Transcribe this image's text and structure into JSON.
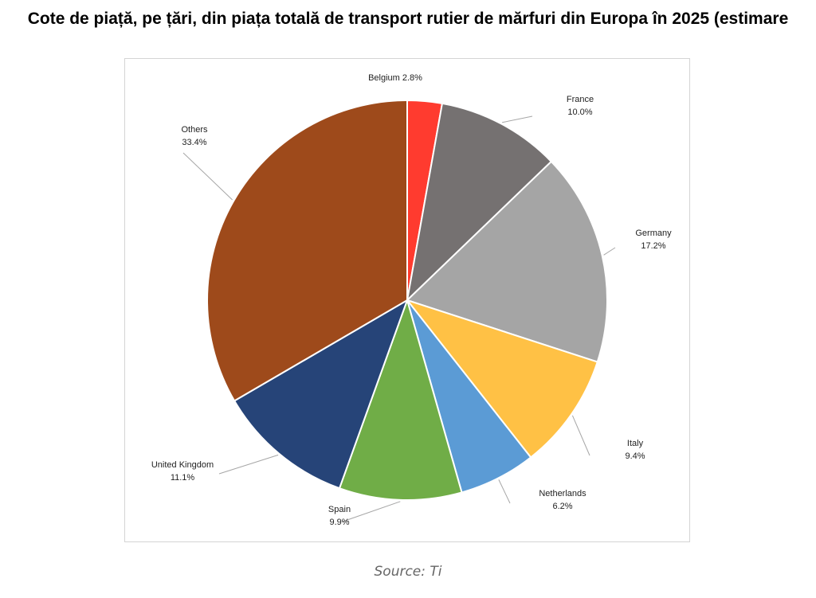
{
  "chart_data": {
    "type": "pie",
    "title": "Cote de piață, pe țări, din piața totală de transport rutier de mărfuri din Europa în 2025 (estimare",
    "slices": [
      {
        "label": "Belgium",
        "value": 2.8,
        "value_label": "2.8%",
        "color": "#ff3b2f"
      },
      {
        "label": "France",
        "value": 10.0,
        "value_label": "10.0%",
        "color": "#757171"
      },
      {
        "label": "Germany",
        "value": 17.2,
        "value_label": "17.2%",
        "color": "#a5a5a5"
      },
      {
        "label": "Italy",
        "value": 9.4,
        "value_label": "9.4%",
        "color": "#ffc145"
      },
      {
        "label": "Netherlands",
        "value": 6.2,
        "value_label": "6.2%",
        "color": "#5b9bd5"
      },
      {
        "label": "Spain",
        "value": 9.9,
        "value_label": "9.9%",
        "color": "#70ad47"
      },
      {
        "label": "United Kingdom",
        "value": 11.1,
        "value_label": "11.1%",
        "color": "#264478"
      },
      {
        "label": "Others",
        "value": 33.4,
        "value_label": "33.4%",
        "color": "#9e4a1b"
      }
    ],
    "start_angle": "12 o'clock",
    "direction": "clockwise",
    "legend": "none",
    "data_labels": "outside with leader lines"
  },
  "source": "Source: Ti"
}
